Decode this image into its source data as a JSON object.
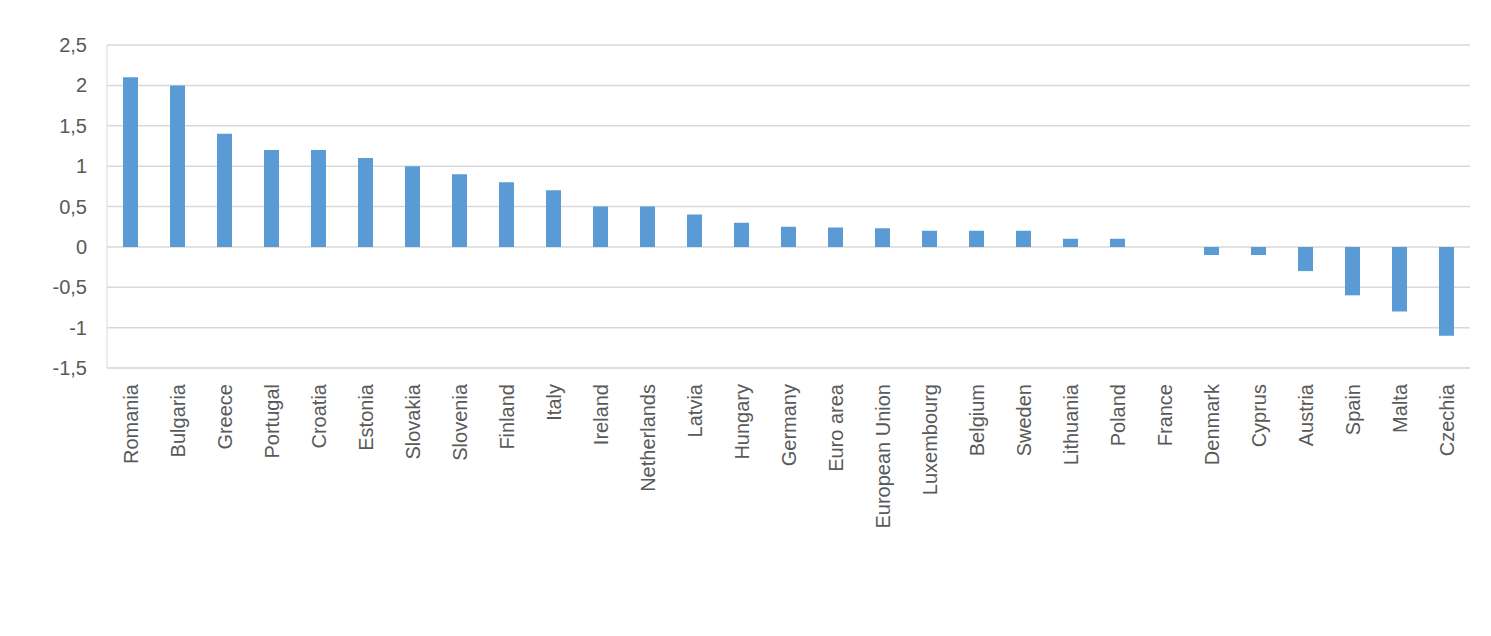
{
  "chart_data": {
    "type": "bar",
    "categories": [
      "Romania",
      "Bulgaria",
      "Greece",
      "Portugal",
      "Croatia",
      "Estonia",
      "Slovakia",
      "Slovenia",
      "Finland",
      "Italy",
      "Ireland",
      "Netherlands",
      "Latvia",
      "Hungary",
      "Germany",
      "Euro area",
      "European Union",
      "Luxembourg",
      "Belgium",
      "Sweden",
      "Lithuania",
      "Poland",
      "France",
      "Denmark",
      "Cyprus",
      "Austria",
      "Spain",
      "Malta",
      "Czechia"
    ],
    "values": [
      2.1,
      2.0,
      1.4,
      1.2,
      1.2,
      1.1,
      1.0,
      0.9,
      0.8,
      0.7,
      0.5,
      0.5,
      0.4,
      0.3,
      0.25,
      0.24,
      0.23,
      0.2,
      0.2,
      0.2,
      0.1,
      0.1,
      0,
      -0.1,
      -0.1,
      -0.3,
      -0.6,
      -0.8,
      -1.1
    ],
    "color": "#5b9bd5",
    "ylim": [
      -1.5,
      2.5
    ],
    "yticks": [
      {
        "value": -1.5,
        "label": "-1,5"
      },
      -1,
      {
        "value": -0.5,
        "label": "-0,5"
      },
      0,
      {
        "value": 0.5,
        "label": "0,5"
      },
      1,
      {
        "value": 1.5,
        "label": "1,5"
      },
      2,
      {
        "value": 2.5,
        "label": "2,5"
      }
    ],
    "grid": true
  }
}
